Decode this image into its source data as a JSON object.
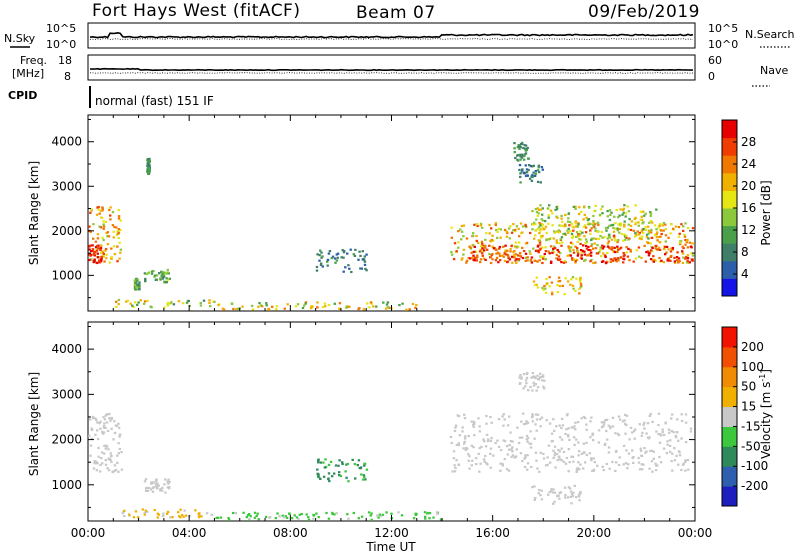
{
  "header": {
    "station": "Fort Hays West (fitACF)",
    "beam": "Beam 07",
    "date": "09/Feb/2019"
  },
  "strip_panels": {
    "nsky_label": "N.Sky",
    "nsky_ticks": [
      "10^5",
      "10^0"
    ],
    "nsearch_label": "N.Search",
    "nsearch_ticks": [
      "10^5",
      "10^0"
    ],
    "freq_label_line1": "Freq.",
    "freq_label_line2": "[MHz]",
    "freq_ticks": [
      "18",
      "8"
    ],
    "nave_label": "Nave",
    "nave_ticks": [
      "60",
      "0"
    ],
    "cpid_label": "CPID",
    "cpid_value": "normal (fast) 151 IF"
  },
  "colors": {
    "power_scale": [
      "#1414e6",
      "#2c5faa",
      "#3f7f6a",
      "#4aa04a",
      "#8cc83c",
      "#e6e614",
      "#f0b000",
      "#f07800",
      "#f03c00",
      "#e60000"
    ],
    "velocity_scale": [
      "#1e1ebe",
      "#2e5fae",
      "#2e8a5a",
      "#3cc83c",
      "#c8c8c8",
      "#f0b000",
      "#f08c00",
      "#f05000",
      "#f01400"
    ]
  },
  "chart_data": [
    {
      "type": "heatmap",
      "title": "",
      "xlabel": "Time UT",
      "ylabel": "Slant Range [km]",
      "x_ticks": [
        "00:00",
        "04:00",
        "08:00",
        "12:00",
        "16:00",
        "20:00",
        "00:00"
      ],
      "xlim_hours": [
        0,
        24
      ],
      "ylim": [
        200,
        4600
      ],
      "y_ticks": [
        1000,
        2000,
        3000,
        4000
      ],
      "colorbar": {
        "label": "Power [dB]",
        "ticks": [
          "4",
          "8",
          "12",
          "16",
          "20",
          "24",
          "28"
        ],
        "range": [
          0,
          30
        ]
      },
      "regions": [
        {
          "t": [
            0.0,
            1.3
          ],
          "r": [
            1300,
            2600
          ],
          "v": [
            14,
            26
          ]
        },
        {
          "t": [
            0.0,
            0.5
          ],
          "r": [
            1300,
            1700
          ],
          "v": [
            25,
            30
          ]
        },
        {
          "t": [
            2.2,
            3.2
          ],
          "r": [
            850,
            1150
          ],
          "v": [
            6,
            16
          ]
        },
        {
          "t": [
            1.8,
            2.0
          ],
          "r": [
            700,
            950
          ],
          "v": [
            6,
            14
          ]
        },
        {
          "t": [
            2.3,
            2.4
          ],
          "r": [
            3300,
            3650
          ],
          "v": [
            6,
            12
          ]
        },
        {
          "t": [
            1.0,
            5.0
          ],
          "r": [
            300,
            480
          ],
          "v": [
            8,
            22
          ]
        },
        {
          "t": [
            5.0,
            13.0
          ],
          "r": [
            250,
            420
          ],
          "v": [
            10,
            24
          ]
        },
        {
          "t": [
            9.0,
            11.0
          ],
          "r": [
            1100,
            1600
          ],
          "v": [
            4,
            10
          ]
        },
        {
          "t": [
            14.3,
            23.9
          ],
          "r": [
            1300,
            2200
          ],
          "v": [
            12,
            26
          ]
        },
        {
          "t": [
            15.0,
            23.9
          ],
          "r": [
            1300,
            1700
          ],
          "v": [
            22,
            30
          ]
        },
        {
          "t": [
            17.5,
            22.5
          ],
          "r": [
            1800,
            2600
          ],
          "v": [
            10,
            20
          ]
        },
        {
          "t": [
            17.5,
            19.5
          ],
          "r": [
            600,
            1000
          ],
          "v": [
            14,
            24
          ]
        },
        {
          "t": [
            17.0,
            18.0
          ],
          "r": [
            3100,
            3500
          ],
          "v": [
            4,
            10
          ]
        },
        {
          "t": [
            16.8,
            17.4
          ],
          "r": [
            3600,
            4000
          ],
          "v": [
            6,
            12
          ]
        }
      ]
    },
    {
      "type": "heatmap",
      "title": "",
      "xlabel": "Time UT",
      "ylabel": "Slant Range [km]",
      "x_ticks": [
        "00:00",
        "04:00",
        "08:00",
        "12:00",
        "16:00",
        "20:00",
        "00:00"
      ],
      "xlim_hours": [
        0,
        24
      ],
      "ylim": [
        200,
        4600
      ],
      "y_ticks": [
        1000,
        2000,
        3000,
        4000
      ],
      "colorbar": {
        "label": "Velocity [m s",
        "label_sup": "-1",
        "ticks": [
          "-200",
          "-100",
          "-50",
          "-15",
          "15",
          "50",
          "100",
          "200"
        ],
        "range": [
          -250,
          250
        ]
      },
      "regions": [
        {
          "t": [
            0.0,
            1.3
          ],
          "r": [
            1300,
            2600
          ],
          "v": [
            -15,
            15
          ]
        },
        {
          "t": [
            2.2,
            3.2
          ],
          "r": [
            850,
            1150
          ],
          "v": [
            -15,
            15
          ]
        },
        {
          "t": [
            1.0,
            4.5
          ],
          "r": [
            300,
            480
          ],
          "v": [
            20,
            60
          ]
        },
        {
          "t": [
            4.5,
            14.0
          ],
          "r": [
            250,
            420
          ],
          "v": [
            -60,
            -20
          ]
        },
        {
          "t": [
            9.0,
            11.0
          ],
          "r": [
            1100,
            1600
          ],
          "v": [
            -120,
            -60
          ]
        },
        {
          "t": [
            14.3,
            23.9
          ],
          "r": [
            1300,
            2600
          ],
          "v": [
            -15,
            15
          ]
        },
        {
          "t": [
            17.5,
            19.5
          ],
          "r": [
            600,
            1000
          ],
          "v": [
            -15,
            15
          ]
        },
        {
          "t": [
            17.0,
            18.0
          ],
          "r": [
            3100,
            3500
          ],
          "v": [
            -15,
            15
          ]
        }
      ]
    }
  ]
}
